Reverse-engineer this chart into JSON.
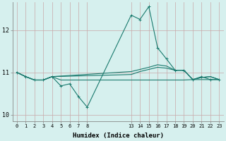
{
  "xlabel": "Humidex (Indice chaleur)",
  "bg_color": "#d6f0ee",
  "line_color": "#1a7a6e",
  "grid_color_v": "#c8a8a8",
  "grid_color_h": "#c8a8a8",
  "xlim": [
    -0.5,
    23.5
  ],
  "ylim": [
    9.85,
    12.65
  ],
  "yticks": [
    10,
    11,
    12
  ],
  "xtick_positions": [
    0,
    1,
    2,
    3,
    4,
    5,
    6,
    7,
    8,
    13,
    14,
    15,
    16,
    17,
    18,
    19,
    20,
    21,
    22,
    23
  ],
  "xtick_labels": [
    "0",
    "1",
    "2",
    "3",
    "4",
    "5",
    "6",
    "7",
    "8",
    "13",
    "14",
    "15",
    "16",
    "17",
    "18",
    "19",
    "20",
    "21",
    "22",
    "23"
  ],
  "series1_x": [
    0,
    1,
    2,
    3,
    4,
    5,
    6,
    7,
    8,
    13,
    14,
    15,
    16,
    17,
    18,
    19,
    20,
    21,
    22,
    23
  ],
  "series1_y": [
    11.0,
    10.9,
    10.82,
    10.82,
    10.9,
    10.68,
    10.73,
    10.43,
    10.18,
    12.35,
    12.25,
    12.55,
    11.58,
    11.32,
    11.05,
    11.05,
    10.83,
    10.9,
    10.83,
    10.83
  ],
  "series2_x": [
    0,
    1,
    2,
    3,
    4,
    5,
    6,
    7,
    8,
    13,
    14,
    15,
    16,
    17,
    18,
    19,
    20,
    21,
    22,
    23
  ],
  "series2_y": [
    11.0,
    10.9,
    10.82,
    10.82,
    10.9,
    10.82,
    10.82,
    10.82,
    10.82,
    10.82,
    10.82,
    10.82,
    10.82,
    10.82,
    10.82,
    10.82,
    10.83,
    10.83,
    10.83,
    10.83
  ],
  "series3_x": [
    0,
    1,
    2,
    3,
    4,
    13,
    14,
    15,
    16,
    17,
    18,
    19,
    20,
    21,
    22,
    23
  ],
  "series3_y": [
    11.0,
    10.9,
    10.82,
    10.82,
    10.9,
    10.95,
    11.02,
    11.07,
    11.12,
    11.1,
    11.05,
    11.05,
    10.83,
    10.88,
    10.9,
    10.83
  ],
  "series4_x": [
    0,
    1,
    2,
    3,
    4,
    13,
    14,
    15,
    16,
    17,
    18,
    19,
    20,
    21,
    22,
    23
  ],
  "series4_y": [
    11.0,
    10.9,
    10.82,
    10.82,
    10.9,
    11.02,
    11.07,
    11.12,
    11.18,
    11.15,
    11.05,
    11.05,
    10.83,
    10.88,
    10.9,
    10.83
  ]
}
